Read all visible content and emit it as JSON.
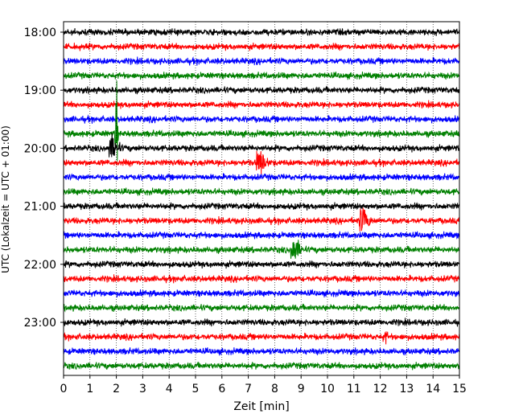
{
  "chart_data": {
    "type": "line",
    "title": "",
    "xlabel": "Zeit  [min]",
    "ylabel": "UTC (Lokalzeit = UTC + 01:00)",
    "xlim": [
      0,
      15
    ],
    "x_ticks": [
      "0",
      "1",
      "2",
      "3",
      "4",
      "5",
      "6",
      "7",
      "8",
      "9",
      "10",
      "11",
      "12",
      "13",
      "14",
      "15"
    ],
    "y_ticks": [
      "18:00",
      "19:00",
      "20:00",
      "21:00",
      "22:00",
      "23:00"
    ],
    "trace_start_hours": [
      "18:00",
      "18:15",
      "18:30",
      "18:45",
      "19:00",
      "19:15",
      "19:30",
      "19:45",
      "20:00",
      "20:15",
      "20:30",
      "20:45",
      "21:00",
      "21:15",
      "21:30",
      "21:45",
      "22:00",
      "22:15",
      "22:30",
      "22:45",
      "23:00",
      "23:15",
      "23:30",
      "23:45"
    ],
    "trace_colors": [
      "#000000",
      "#ff0000",
      "#0000ff",
      "#008000"
    ],
    "grid_x": true,
    "grid_style": "dotted",
    "events": [
      {
        "trace": "19:45",
        "x_min": 2.0,
        "note": "spike"
      },
      {
        "trace": "20:00",
        "x_min": 1.8,
        "note": "burst"
      },
      {
        "trace": "20:15",
        "x_min": 7.4,
        "note": "burst"
      },
      {
        "trace": "21:15",
        "x_min": 11.3,
        "note": "burst"
      },
      {
        "trace": "21:45",
        "x_min": 8.7,
        "note": "burst"
      },
      {
        "trace": "23:15",
        "x_min": 12.2,
        "note": "small burst"
      }
    ]
  }
}
